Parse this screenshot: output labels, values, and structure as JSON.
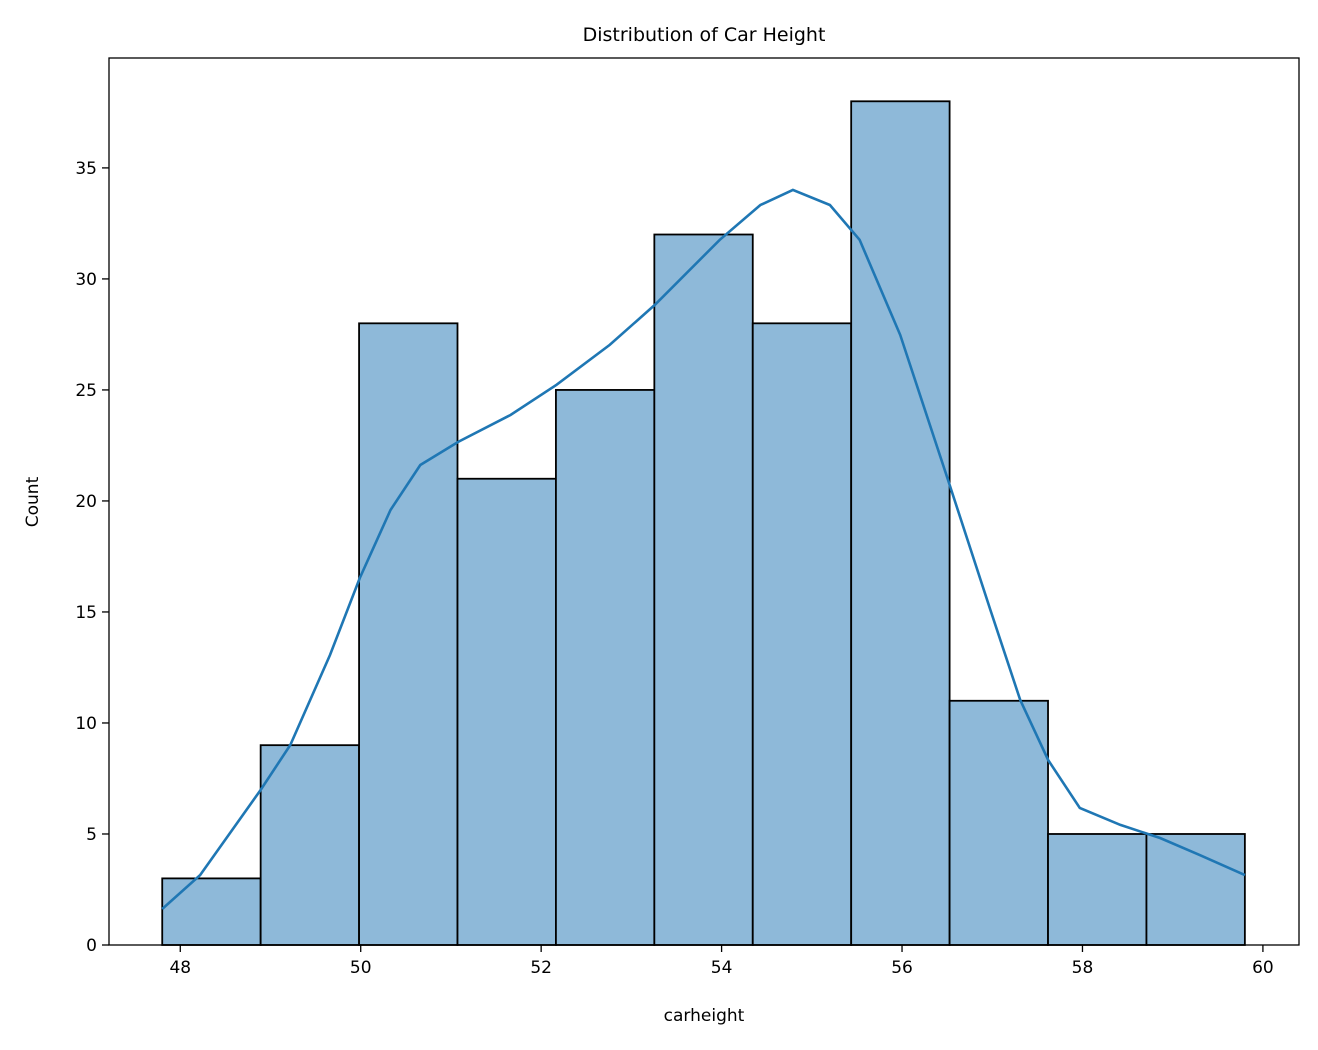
{
  "chart_data": {
    "type": "bar",
    "title": "Distribution of Car Height",
    "xlabel": "carheight",
    "ylabel": "Count",
    "xlim": [
      47.21,
      60.4
    ],
    "ylim": [
      0,
      39.95
    ],
    "xticks": [
      48,
      50,
      52,
      54,
      56,
      58,
      60
    ],
    "yticks": [
      0,
      5,
      10,
      15,
      20,
      25,
      30,
      35
    ],
    "bin_start": 47.8,
    "bin_end": 59.8,
    "values": [
      3,
      9,
      28,
      21,
      25,
      32,
      28,
      38,
      11,
      5,
      5
    ],
    "bar_color": "#8eb9d9",
    "line_color": "#1f77b4",
    "grid": false,
    "kde": {
      "x": [
        47.8,
        48.22,
        48.89,
        49.22,
        49.66,
        49.99,
        50.33,
        50.66,
        51.08,
        51.66,
        52.17,
        52.76,
        53.26,
        53.98,
        54.43,
        54.79,
        55.2,
        55.53,
        55.98,
        56.51,
        56.98,
        57.31,
        57.62,
        57.97,
        58.42,
        58.86,
        59.3,
        59.8
      ],
      "y": [
        1.62,
        3.15,
        6.98,
        9.01,
        13.06,
        16.53,
        19.59,
        21.62,
        22.66,
        23.87,
        25.23,
        27.03,
        28.83,
        31.76,
        33.33,
        34.01,
        33.33,
        31.76,
        27.48,
        20.95,
        15.09,
        11.04,
        8.33,
        6.17,
        5.41,
        4.82,
        4.05,
        3.15
      ]
    }
  }
}
